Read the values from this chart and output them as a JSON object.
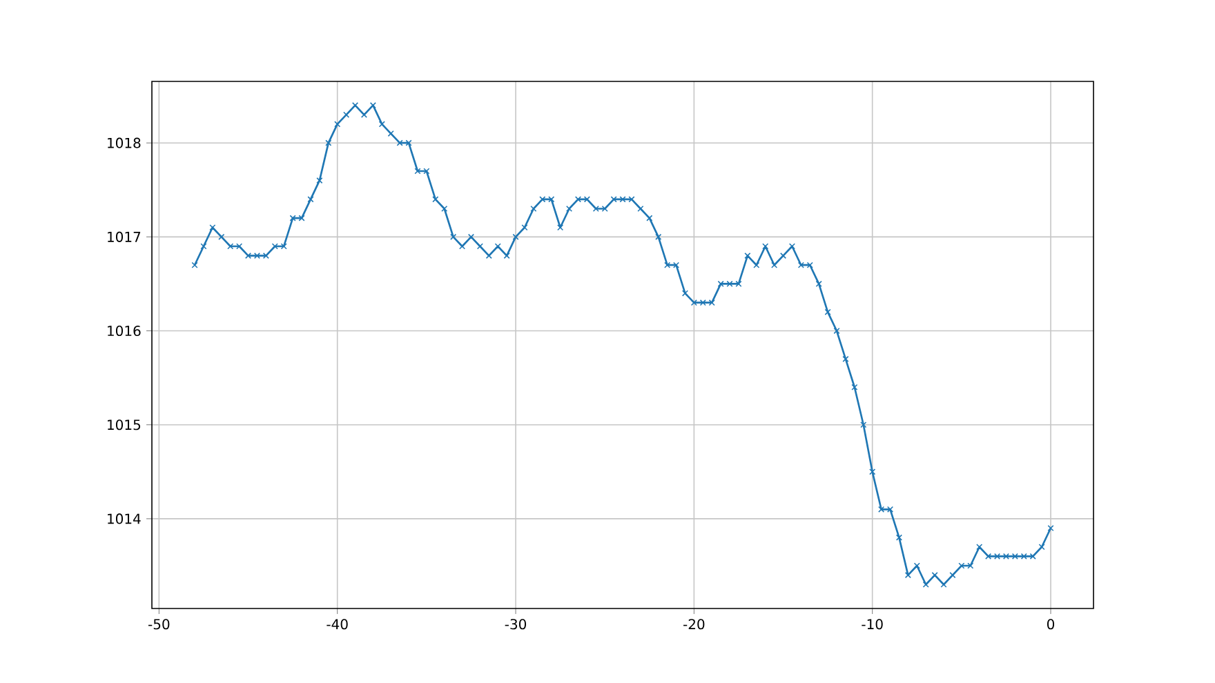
{
  "chart_data": {
    "type": "line",
    "x": [
      -48,
      -47.5,
      -47,
      -46.5,
      -46,
      -45.5,
      -45,
      -44.5,
      -44,
      -43.5,
      -43,
      -42.5,
      -42,
      -41.5,
      -41,
      -40.5,
      -40,
      -39.5,
      -39,
      -38.5,
      -38,
      -37.5,
      -37,
      -36.5,
      -36,
      -35.5,
      -35,
      -34.5,
      -34,
      -33.5,
      -33,
      -32.5,
      -32,
      -31.5,
      -31,
      -30.5,
      -30,
      -29.5,
      -29,
      -28.5,
      -28,
      -27.5,
      -27,
      -26.5,
      -26,
      -25.5,
      -25,
      -24.5,
      -24,
      -23.5,
      -23,
      -22.5,
      -22,
      -21.5,
      -21,
      -20.5,
      -20,
      -19.5,
      -19,
      -18.5,
      -18,
      -17.5,
      -17,
      -16.5,
      -16,
      -15.5,
      -15,
      -14.5,
      -14,
      -13.5,
      -13,
      -12.5,
      -12,
      -11.5,
      -11,
      -10.5,
      -10,
      -9.5,
      -9,
      -8.5,
      -8,
      -7.5,
      -7,
      -6.5,
      -6,
      -5.5,
      -5,
      -4.5,
      -4,
      -3.5,
      -3,
      -2.5,
      -2,
      -1.5,
      -1,
      -0.5,
      0
    ],
    "series": [
      {
        "color": "#1f77b4",
        "values": [
          1016.7,
          1016.9,
          1017.1,
          1017.0,
          1016.9,
          1016.9,
          1016.8,
          1016.8,
          1016.8,
          1016.9,
          1016.9,
          1017.2,
          1017.2,
          1017.4,
          1017.6,
          1018.0,
          1018.2,
          1018.3,
          1018.4,
          1018.3,
          1018.4,
          1018.2,
          1018.1,
          1018.0,
          1018.0,
          1017.7,
          1017.7,
          1017.4,
          1017.3,
          1017.0,
          1016.9,
          1017.0,
          1016.9,
          1016.8,
          1016.9,
          1016.8,
          1017.0,
          1017.1,
          1017.3,
          1017.4,
          1017.4,
          1017.1,
          1017.3,
          1017.4,
          1017.4,
          1017.3,
          1017.3,
          1017.4,
          1017.4,
          1017.4,
          1017.3,
          1017.2,
          1017.0,
          1016.7,
          1016.7,
          1016.4,
          1016.3,
          1016.3,
          1016.3,
          1016.5,
          1016.5,
          1016.5,
          1016.8,
          1016.7,
          1016.9,
          1016.7,
          1016.8,
          1016.9,
          1016.7,
          1016.7,
          1016.5,
          1016.2,
          1016.0,
          1015.7,
          1015.4,
          1015.0,
          1014.5,
          1014.1,
          1014.1,
          1013.8,
          1013.4,
          1013.5,
          1013.3,
          1013.4,
          1013.3,
          1013.4,
          1013.5,
          1013.5,
          1013.7,
          1013.6,
          1013.6,
          1013.6,
          1013.6,
          1013.6,
          1013.6,
          1013.7,
          1013.9
        ]
      }
    ],
    "xlim": [
      -50.4,
      2.4
    ],
    "ylim": [
      1013.045,
      1018.655
    ],
    "xticks": [
      -50,
      -40,
      -30,
      -20,
      -10,
      0
    ],
    "yticks": [
      1014,
      1015,
      1016,
      1017,
      1018
    ],
    "grid": true,
    "marker": "cross",
    "line_style": "solid"
  }
}
